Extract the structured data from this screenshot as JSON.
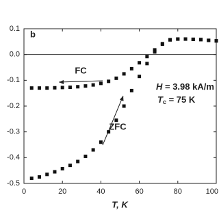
{
  "chart_data": {
    "type": "scatter",
    "panel_label": "b",
    "x_label": "T, K",
    "x": [
      4,
      8,
      12,
      16,
      20,
      24,
      28,
      32,
      36,
      40,
      44,
      48,
      52,
      56,
      60,
      64,
      68,
      72,
      76,
      80,
      84,
      88,
      92,
      96,
      100
    ],
    "series": [
      {
        "name": "FC",
        "color": "#111111",
        "values": [
          -0.13,
          -0.13,
          -0.13,
          -0.129,
          -0.128,
          -0.127,
          -0.125,
          -0.122,
          -0.118,
          -0.112,
          -0.104,
          -0.092,
          -0.075,
          -0.055,
          -0.032,
          -0.008,
          0.018,
          0.042,
          0.057,
          0.06,
          0.06,
          0.059,
          0.058,
          0.055,
          0.053
        ]
      },
      {
        "name": "ZFC",
        "color": "#111111",
        "values": [
          -0.48,
          -0.475,
          -0.465,
          -0.455,
          -0.443,
          -0.43,
          -0.415,
          -0.395,
          -0.37,
          -0.34,
          -0.3,
          -0.255,
          -0.2,
          -0.14,
          -0.085,
          -0.035,
          0.01,
          0.04,
          0.057,
          0.06,
          0.06,
          0.059,
          0.058,
          0.055,
          0.053
        ]
      }
    ],
    "annotations": [
      {
        "symbol": "H",
        "subscript": "",
        "text": " = 3.98 kA/m"
      },
      {
        "symbol": "T",
        "subscript": "c",
        "text": " = 75 K"
      }
    ],
    "xlim": [
      0,
      100
    ],
    "xticks": [
      0,
      20,
      40,
      60,
      80,
      100
    ],
    "ylim": [
      -0.5,
      0.1
    ],
    "yticks": [
      {
        "value": -0.5,
        "label": "-0.5"
      },
      {
        "value": -0.4,
        "label": "-0.4"
      },
      {
        "value": -0.3,
        "label": "-0.3"
      },
      {
        "value": -0.2,
        "label": "-0.2"
      },
      {
        "value": -0.1,
        "label": "-0.1"
      },
      {
        "value": 0,
        "label": "0.0"
      },
      {
        "value": 0.1,
        "label": "0.1"
      }
    ],
    "zero_line": true
  }
}
